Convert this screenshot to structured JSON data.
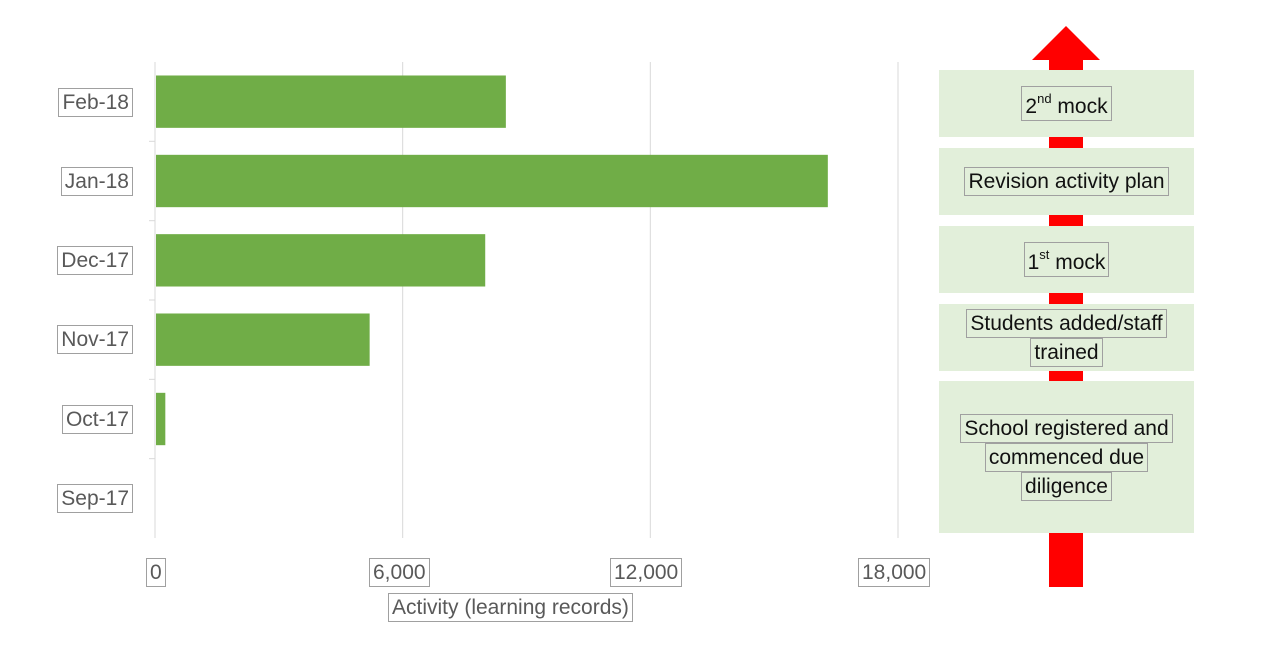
{
  "chart_data": {
    "type": "bar",
    "orientation": "horizontal",
    "categories": [
      "Feb-18",
      "Jan-18",
      "Dec-17",
      "Nov-17",
      "Oct-17",
      "Sep-17"
    ],
    "values": [
      8500,
      16300,
      8000,
      5200,
      250,
      0
    ],
    "xlabel": "Activity (learning records)",
    "xlim": [
      0,
      18000
    ],
    "xticks": [
      "0",
      "6,000",
      "12,000",
      "18,000"
    ],
    "grid": true,
    "bar_color": "#70ad47"
  },
  "timeline": {
    "arrow_color": "#ff0000",
    "box_color": "#e2efda",
    "events": [
      {
        "ordinal": "2",
        "sup": "nd",
        "text": "mock"
      },
      {
        "text": "Revision activity plan"
      },
      {
        "ordinal": "1",
        "sup": "st",
        "text": "mock"
      },
      {
        "line1": "Students added/staff",
        "line2": "trained"
      },
      {
        "line1": "School registered and",
        "line2": "commenced due",
        "line3": "diligence"
      }
    ]
  }
}
